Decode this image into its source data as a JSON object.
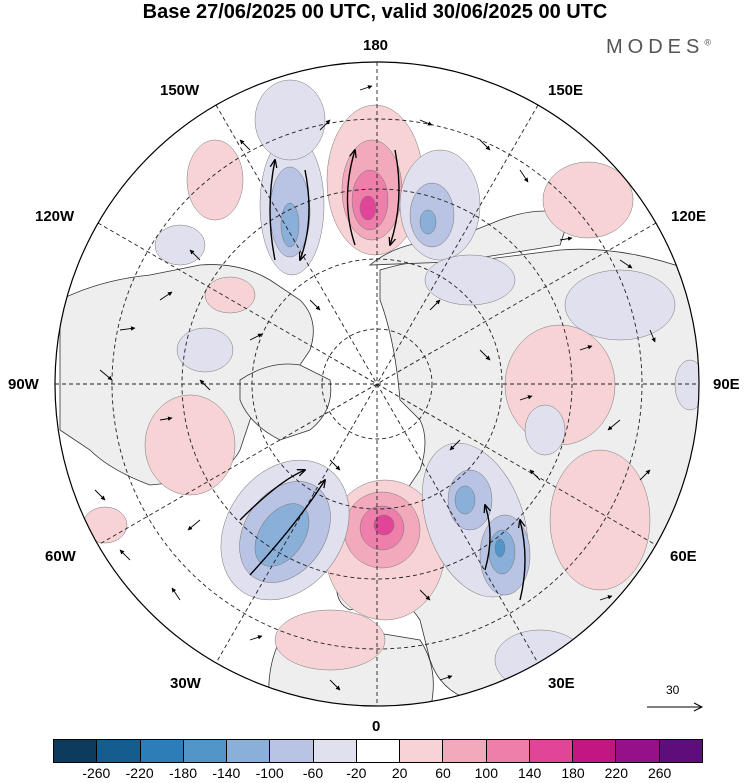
{
  "title": "Base 27/06/2025 00 UTC, valid 30/06/2025 00 UTC",
  "brand": "MODES",
  "brand_mark": "®",
  "longitude_labels": {
    "top": "180",
    "bottom": "0",
    "left": "90W",
    "right": "90E",
    "upper_left_outer": "150W",
    "upper_left_inner": "120W",
    "upper_right_outer": "150E",
    "upper_right_inner": "120E",
    "lower_left_inner": "60W",
    "lower_left_outer": "30W",
    "lower_right_inner": "60E",
    "lower_right_outer": "30E"
  },
  "wind_scale_label": "30",
  "colorbar": {
    "colors": [
      "#0d3b5e",
      "#155d8f",
      "#2d7db8",
      "#5296c8",
      "#8aafd8",
      "#b9c3e3",
      "#e1e0ef",
      "#ffffff",
      "#f7d3d5",
      "#f3a9bc",
      "#ee7eaa",
      "#e14598",
      "#c21682",
      "#96108a",
      "#5e0e78"
    ],
    "tick_labels": [
      "-260",
      "-220",
      "-180",
      "-140",
      "-100",
      "-60",
      "-20",
      "20",
      "60",
      "100",
      "140",
      "180",
      "220",
      "260"
    ]
  },
  "map_colors": {
    "land": "#eeeeee",
    "ocean": "#ffffff",
    "grid": "#222222",
    "coast": "#333333"
  }
}
